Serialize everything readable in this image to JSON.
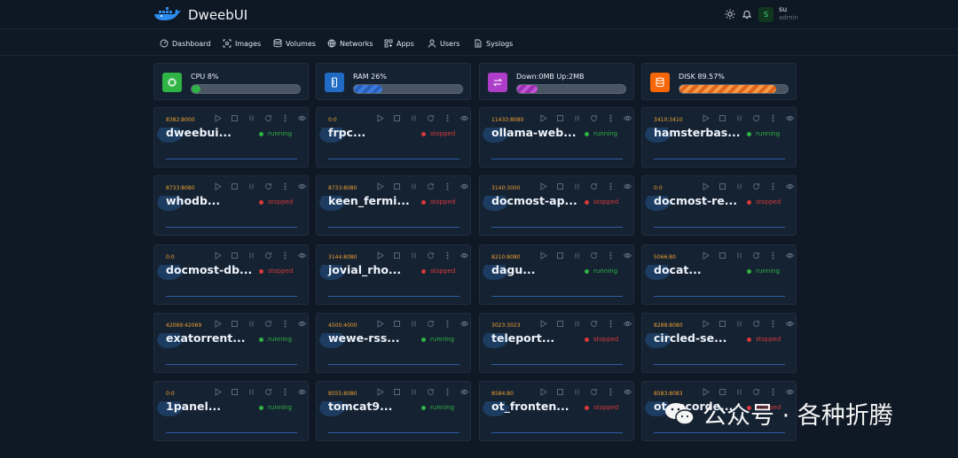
{
  "app": {
    "title": "DweebUI"
  },
  "user": {
    "initial": "S",
    "name": "su",
    "role": "admin"
  },
  "nav": [
    {
      "label": "Dashboard",
      "icon": "dashboard-icon"
    },
    {
      "label": "Images",
      "icon": "images-icon"
    },
    {
      "label": "Volumes",
      "icon": "volumes-icon"
    },
    {
      "label": "Networks",
      "icon": "networks-icon"
    },
    {
      "label": "Apps",
      "icon": "apps-icon"
    },
    {
      "label": "Users",
      "icon": "users-icon"
    },
    {
      "label": "Syslogs",
      "icon": "syslogs-icon"
    }
  ],
  "stats": [
    {
      "label": "CPU 8%",
      "icon": "cpu-icon",
      "color": "#2fb344",
      "fill": 0.08
    },
    {
      "label": "RAM 26%",
      "icon": "ram-icon",
      "color": "#206bc4",
      "fill": 0.26
    },
    {
      "label": "Down:0MB Up:2MB",
      "icon": "network-traffic-icon",
      "color": "#ae3ec9",
      "fill": 0.19
    },
    {
      "label": "DISK 89.57%",
      "icon": "disk-icon",
      "color": "#f76707",
      "fill": 0.8957
    }
  ],
  "containers": [
    {
      "port": "8382:8000",
      "name": "dweebui...",
      "status": "running"
    },
    {
      "port": "0:0",
      "name": "frpc...",
      "status": "stopped"
    },
    {
      "port": "11433:8080",
      "name": "ollama-web...",
      "status": "running"
    },
    {
      "port": "3410:3410",
      "name": "hamsterbas...",
      "status": "running"
    },
    {
      "port": "8733:8080",
      "name": "whodb...",
      "status": "stopped"
    },
    {
      "port": "8733:8080",
      "name": "keen_fermi...",
      "status": "stopped"
    },
    {
      "port": "3140:3000",
      "name": "docmost-ap...",
      "status": "stopped"
    },
    {
      "port": "0:0",
      "name": "docmost-re...",
      "status": "stopped"
    },
    {
      "port": "0:0",
      "name": "docmost-db...",
      "status": "stopped"
    },
    {
      "port": "3144:8080",
      "name": "jovial_rho...",
      "status": "stopped"
    },
    {
      "port": "8210:8080",
      "name": "dagu...",
      "status": "running"
    },
    {
      "port": "5066:80",
      "name": "docat...",
      "status": "running"
    },
    {
      "port": "42069:42069",
      "name": "exatorrent...",
      "status": "running"
    },
    {
      "port": "4500:4000",
      "name": "wewe-rss...",
      "status": "running"
    },
    {
      "port": "3023:3023",
      "name": "teleport...",
      "status": "stopped"
    },
    {
      "port": "8288:8080",
      "name": "circled-se...",
      "status": "stopped"
    },
    {
      "port": "0:0",
      "name": "1panel...",
      "status": "running"
    },
    {
      "port": "8555:8080",
      "name": "tomcat9...",
      "status": "running"
    },
    {
      "port": "8584:80",
      "name": "ot_fronten...",
      "status": "stopped"
    },
    {
      "port": "8583:8083",
      "name": "ot_recorde...",
      "status": "stopped"
    }
  ],
  "status_colors": {
    "running": "#2fb344",
    "stopped": "#d63939"
  },
  "watermark": {
    "text": "公众号 · 各种折腾"
  }
}
